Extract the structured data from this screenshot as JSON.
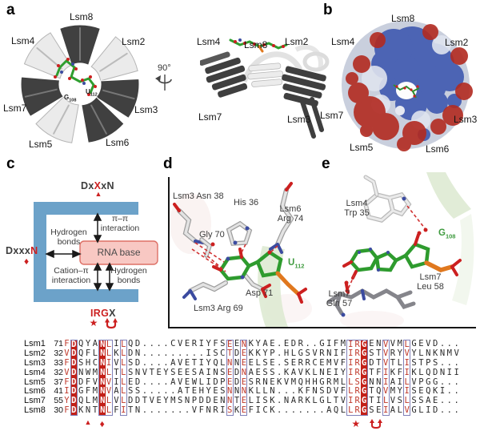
{
  "glyphs": {
    "triangle": "▲",
    "diamond": "♦",
    "star": "★"
  },
  "colors": {
    "marker_red": "#cc2020",
    "align_red_bg": "#c32017",
    "align_red_letter": "#c0392b",
    "box_outline": "#8080b8",
    "blue_shape": "#6CA2C9",
    "pink_box": "#f8c8c3",
    "rna_green": "#2f9e2f",
    "surface_blue": "#3752ae",
    "surface_red": "#b22a20"
  },
  "panel_a": {
    "label": "a",
    "rotation_label": "90°",
    "left": {
      "lsm8": "Lsm8",
      "lsm4": "Lsm4",
      "lsm2": "Lsm2",
      "lsm7": "Lsm7",
      "lsm3": "Lsm3",
      "lsm5": "Lsm5",
      "lsm6": "Lsm6",
      "g_label": "G",
      "g_sub": "108",
      "u_label": "U",
      "u_sub": "112"
    },
    "right": {
      "lsm4": "Lsm4",
      "lsm8": "Lsm8",
      "lsm2": "Lsm2",
      "lsm7": "Lsm7",
      "lsm3": "Lsm3"
    }
  },
  "panel_b": {
    "label": "b",
    "labels": {
      "lsm8": "Lsm8",
      "lsm4": "Lsm4",
      "lsm2": "Lsm2",
      "lsm7": "Lsm7",
      "lsm3": "Lsm3",
      "lsm5": "Lsm5",
      "lsm6": "Lsm6"
    }
  },
  "panel_c": {
    "label": "c",
    "motif_top": {
      "p1": "Dx",
      "p2": "X",
      "p3": "xN"
    },
    "motif_left": {
      "p1": "Dxxx",
      "p2": "N"
    },
    "motif_bottom": {
      "p1": "IRG",
      "p2": "X"
    },
    "rna_base": "RNA base",
    "hbond_left_1": "Hydrogen",
    "hbond_left_2": "bonds",
    "pi_1": "π–π",
    "pi_2": "interaction",
    "cation_1": "Cation–π",
    "cation_2": "interaction",
    "hbond_right_1": "Hydrogen",
    "hbond_right_2": "bonds"
  },
  "panel_d": {
    "label": "d",
    "asn38": "Lsm3 Asn 38",
    "his36": "His 36",
    "lsm6": "Lsm6",
    "arg74": "Arg 74",
    "gly70": "Gly 70",
    "asp71": "Asp 71",
    "arg69": "Lsm3 Arg 69",
    "u_label": "U",
    "u_sub": "112"
  },
  "panel_e": {
    "label": "e",
    "lsm4": "Lsm4",
    "trp35": "Trp 35",
    "g_label": "G",
    "g_sub": "108",
    "lsm7_top": "Lsm7",
    "leu58": "Leu 58",
    "lsm7_bottom": "Lsm7",
    "gln57": "Gln 57"
  },
  "alignment": {
    "rows": [
      {
        "name": "Lsm1",
        "start": "71",
        "seq": "FDQYANLILQD....CVERIYFSEENKYAE.EDR..GIFMIRGENVVMLGEVD..."
      },
      {
        "name": "Lsm2",
        "start": "32",
        "seq": "VDQFLNLKLDN.........ISCTDEKKYP.HLGSVRNIFIRGSTVRYVYLNKNMV"
      },
      {
        "name": "Lsm3",
        "start": "33",
        "seq": "FDSHCNIVLSD....AVETIYQLNNEELSE.SERRCEMVFIRGDTVTLISTPS..."
      },
      {
        "name": "Lsm4",
        "start": "32",
        "seq": "VDNWMNLTLSNVTEYSEESAINSEDNAESS.KAVKLNEIYIRGTFIKFIKLQDNII"
      },
      {
        "name": "Lsm5",
        "start": "37",
        "seq": "FDDFVNVILED....AVEWLIDPEDESRNEKVMQHHGRMLLSGNNIAILVPGG..."
      },
      {
        "name": "Lsm6",
        "start": "41",
        "seq": "IDGFMNVALSS.....ATEHYESNNNKLLN...KFNSDVFLRGTQVMYISEQKI.."
      },
      {
        "name": "Lsm7",
        "start": "55",
        "seq": "YDQLMNLVLDDTVEYMSNPDDENNTELISK.NARKLGLTVIRGTILVSLSSAE..."
      },
      {
        "name": "Lsm8",
        "start": "30",
        "seq": "FDKNTNLFITN.......VFNRISKEFICK.......AQLLRGSEIALVGLID..."
      }
    ],
    "styles": {
      "redbg_cols": [
        2,
        6,
        43
      ],
      "red_cols": [
        1,
        7,
        9,
        24,
        26,
        41,
        42,
        46,
        49
      ],
      "box_spans": [
        [
          2,
          2
        ],
        [
          6,
          7
        ],
        [
          9,
          9
        ],
        [
          24,
          24
        ],
        [
          26,
          26
        ],
        [
          41,
          43
        ],
        [
          46,
          46
        ],
        [
          49,
          49
        ]
      ]
    },
    "markers": [
      {
        "type": "triangle",
        "col": 4
      },
      {
        "type": "diamond",
        "col": 6
      },
      {
        "type": "star",
        "col": 41.8
      },
      {
        "type": "uarrows",
        "col": 44.6
      }
    ]
  }
}
